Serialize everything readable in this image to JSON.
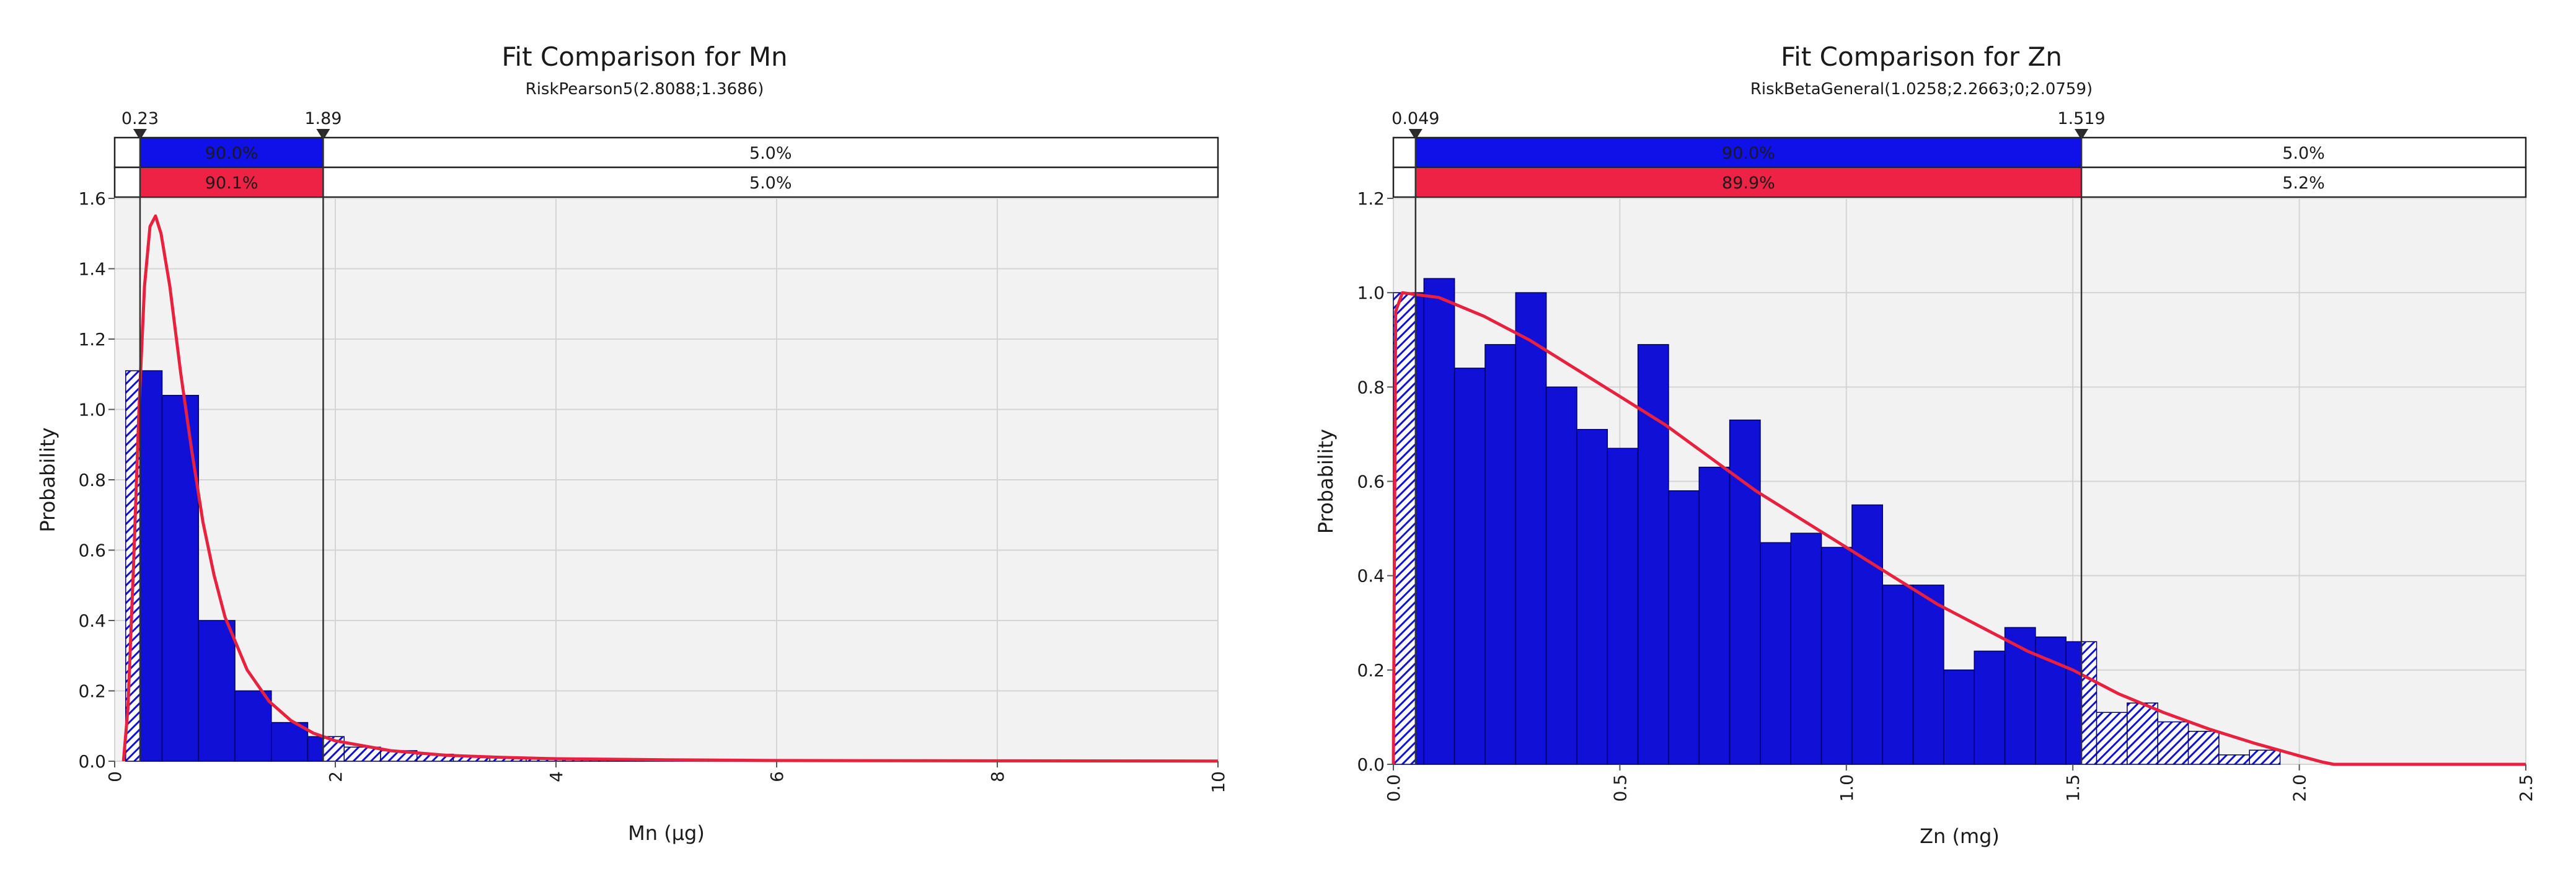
{
  "colors": {
    "bar_fill": "#1010d6",
    "bar_stroke": "#000060",
    "fit_line": "#e8213e",
    "band_blue": "#1010e8",
    "band_red": "#ee2244",
    "plot_bg": "#f2f2f2",
    "grid": "#d4d4d4",
    "marker_line": "#303030"
  },
  "chart_data": [
    {
      "type": "bar",
      "title": "Fit Comparison for Mn",
      "subtitle": "RiskPearson5(2.8088;1.3686)",
      "xlabel": "Mn (µg)",
      "ylabel": "Probability",
      "xlim": [
        0,
        10
      ],
      "ylim": [
        0,
        1.6
      ],
      "x_ticks": [
        "0",
        "2",
        "4",
        "6",
        "8",
        "10"
      ],
      "x_tick_values": [
        0,
        2,
        4,
        6,
        8,
        10
      ],
      "y_ticks": [
        "0.0",
        "0.2",
        "0.4",
        "0.6",
        "0.8",
        "1.0",
        "1.2",
        "1.4",
        "1.6"
      ],
      "y_tick_values": [
        0,
        0.2,
        0.4,
        0.6,
        0.8,
        1.0,
        1.2,
        1.4,
        1.6
      ],
      "grid": true,
      "histogram": {
        "bin_width": 0.33,
        "bins": [
          {
            "x0": 0.1,
            "value": 1.11
          },
          {
            "x0": 0.43,
            "value": 1.04
          },
          {
            "x0": 0.76,
            "value": 0.4
          },
          {
            "x0": 1.09,
            "value": 0.2
          },
          {
            "x0": 1.42,
            "value": 0.11
          },
          {
            "x0": 1.75,
            "value": 0.07
          },
          {
            "x0": 2.08,
            "value": 0.04
          },
          {
            "x0": 2.41,
            "value": 0.03
          },
          {
            "x0": 2.74,
            "value": 0.02
          },
          {
            "x0": 3.07,
            "value": 0.015
          },
          {
            "x0": 3.4,
            "value": 0.01
          },
          {
            "x0": 3.73,
            "value": 0.008
          },
          {
            "x0": 4.06,
            "value": 0.006
          },
          {
            "x0": 4.39,
            "value": 0.005
          },
          {
            "x0": 4.72,
            "value": 0.004
          },
          {
            "x0": 5.05,
            "value": 0.003
          },
          {
            "x0": 5.38,
            "value": 0.002
          },
          {
            "x0": 5.71,
            "value": 0.002
          },
          {
            "x0": 6.04,
            "value": 0.001
          },
          {
            "x0": 6.37,
            "value": 0.001
          }
        ]
      },
      "fit_curve": {
        "name": "RiskPearson5",
        "points": [
          [
            0.08,
            0.0
          ],
          [
            0.12,
            0.15
          ],
          [
            0.17,
            0.55
          ],
          [
            0.22,
            1.0
          ],
          [
            0.27,
            1.35
          ],
          [
            0.32,
            1.52
          ],
          [
            0.37,
            1.55
          ],
          [
            0.42,
            1.5
          ],
          [
            0.5,
            1.35
          ],
          [
            0.6,
            1.1
          ],
          [
            0.7,
            0.88
          ],
          [
            0.8,
            0.68
          ],
          [
            0.9,
            0.53
          ],
          [
            1.0,
            0.41
          ],
          [
            1.2,
            0.26
          ],
          [
            1.4,
            0.17
          ],
          [
            1.6,
            0.115
          ],
          [
            1.8,
            0.08
          ],
          [
            2.0,
            0.058
          ],
          [
            2.5,
            0.03
          ],
          [
            3.0,
            0.017
          ],
          [
            3.5,
            0.011
          ],
          [
            4.0,
            0.007
          ],
          [
            5.0,
            0.004
          ],
          [
            6.0,
            0.002
          ],
          [
            8.0,
            0.001
          ],
          [
            10.0,
            0.0005
          ]
        ]
      },
      "markers": {
        "left": {
          "value": 0.23,
          "label": "0.23"
        },
        "right": {
          "value": 1.89,
          "label": "1.89"
        }
      },
      "bands": {
        "blue": {
          "left_pct": "",
          "mid_pct": "90.0%",
          "right_pct": "5.0%"
        },
        "red": {
          "left_pct": "",
          "mid_pct": "90.1%",
          "right_pct": "5.0%"
        }
      }
    },
    {
      "type": "bar",
      "title": "Fit Comparison for Zn",
      "subtitle": "RiskBetaGeneral(1.0258;2.2663;0;2.0759)",
      "xlabel": "Zn (mg)",
      "ylabel": "Probability",
      "xlim": [
        0,
        2.5
      ],
      "ylim": [
        0,
        1.2
      ],
      "x_ticks": [
        "0.0",
        "0.5",
        "1.0",
        "1.5",
        "2.0",
        "2.5"
      ],
      "x_tick_values": [
        0,
        0.5,
        1.0,
        1.5,
        2.0,
        2.5
      ],
      "y_ticks": [
        "0.0",
        "0.2",
        "0.4",
        "0.6",
        "0.8",
        "1.0",
        "1.2"
      ],
      "y_tick_values": [
        0,
        0.2,
        0.4,
        0.6,
        0.8,
        1.0,
        1.2
      ],
      "grid": true,
      "histogram": {
        "bin_width": 0.0675,
        "bins": [
          {
            "x0": 0.0,
            "value": 1.0
          },
          {
            "x0": 0.0675,
            "value": 1.03
          },
          {
            "x0": 0.135,
            "value": 0.84
          },
          {
            "x0": 0.2025,
            "value": 0.89
          },
          {
            "x0": 0.27,
            "value": 1.0
          },
          {
            "x0": 0.3375,
            "value": 0.8
          },
          {
            "x0": 0.405,
            "value": 0.71
          },
          {
            "x0": 0.4725,
            "value": 0.67
          },
          {
            "x0": 0.54,
            "value": 0.89
          },
          {
            "x0": 0.6075,
            "value": 0.58
          },
          {
            "x0": 0.675,
            "value": 0.63
          },
          {
            "x0": 0.7425,
            "value": 0.73
          },
          {
            "x0": 0.81,
            "value": 0.47
          },
          {
            "x0": 0.8775,
            "value": 0.49
          },
          {
            "x0": 0.945,
            "value": 0.46
          },
          {
            "x0": 1.0125,
            "value": 0.55
          },
          {
            "x0": 1.08,
            "value": 0.38
          },
          {
            "x0": 1.1475,
            "value": 0.38
          },
          {
            "x0": 1.215,
            "value": 0.2
          },
          {
            "x0": 1.2825,
            "value": 0.24
          },
          {
            "x0": 1.35,
            "value": 0.29
          },
          {
            "x0": 1.4175,
            "value": 0.27
          },
          {
            "x0": 1.485,
            "value": 0.26
          },
          {
            "x0": 1.5525,
            "value": 0.11
          },
          {
            "x0": 1.62,
            "value": 0.13
          },
          {
            "x0": 1.6875,
            "value": 0.09
          },
          {
            "x0": 1.755,
            "value": 0.07
          },
          {
            "x0": 1.8225,
            "value": 0.02
          },
          {
            "x0": 1.89,
            "value": 0.03
          }
        ]
      },
      "fit_curve": {
        "name": "RiskBetaGeneral",
        "points": [
          [
            0.0,
            0.0
          ],
          [
            0.005,
            0.96
          ],
          [
            0.02,
            1.0
          ],
          [
            0.05,
            0.996
          ],
          [
            0.1,
            0.99
          ],
          [
            0.2,
            0.95
          ],
          [
            0.3,
            0.9
          ],
          [
            0.4,
            0.84
          ],
          [
            0.5,
            0.78
          ],
          [
            0.6,
            0.72
          ],
          [
            0.7,
            0.65
          ],
          [
            0.8,
            0.58
          ],
          [
            0.9,
            0.52
          ],
          [
            1.0,
            0.46
          ],
          [
            1.1,
            0.4
          ],
          [
            1.2,
            0.34
          ],
          [
            1.3,
            0.29
          ],
          [
            1.4,
            0.24
          ],
          [
            1.5,
            0.2
          ],
          [
            1.6,
            0.15
          ],
          [
            1.7,
            0.11
          ],
          [
            1.8,
            0.075
          ],
          [
            1.9,
            0.045
          ],
          [
            2.0,
            0.018
          ],
          [
            2.05,
            0.005
          ],
          [
            2.0759,
            0.0
          ],
          [
            2.5,
            0.0
          ]
        ]
      },
      "markers": {
        "left": {
          "value": 0.049,
          "label": "0.049"
        },
        "right": {
          "value": 1.519,
          "label": "1.519"
        }
      },
      "bands": {
        "blue": {
          "left_pct": "",
          "mid_pct": "90.0%",
          "right_pct": "5.0%"
        },
        "red": {
          "left_pct": "",
          "mid_pct": "89.9%",
          "right_pct": "5.2%"
        }
      }
    }
  ]
}
